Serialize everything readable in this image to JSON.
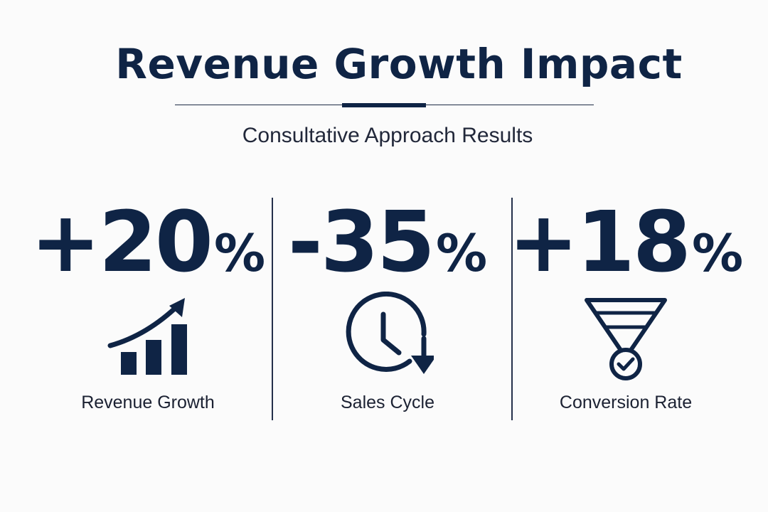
{
  "header": {
    "title": "Revenue Growth Impact",
    "subtitle": "Consultative Approach Results"
  },
  "metrics": [
    {
      "value": "+20",
      "unit": "%",
      "label": "Revenue Growth",
      "icon": "bar-chart-up-arrow-icon"
    },
    {
      "value": "-35",
      "unit": "%",
      "label": "Sales Cycle",
      "icon": "clock-down-arrow-icon"
    },
    {
      "value": "+18",
      "unit": "%",
      "label": "Conversion Rate",
      "icon": "funnel-check-icon"
    }
  ],
  "colors": {
    "primary": "#0f2445",
    "background": "#fbfbfb",
    "text": "#1b2132"
  }
}
